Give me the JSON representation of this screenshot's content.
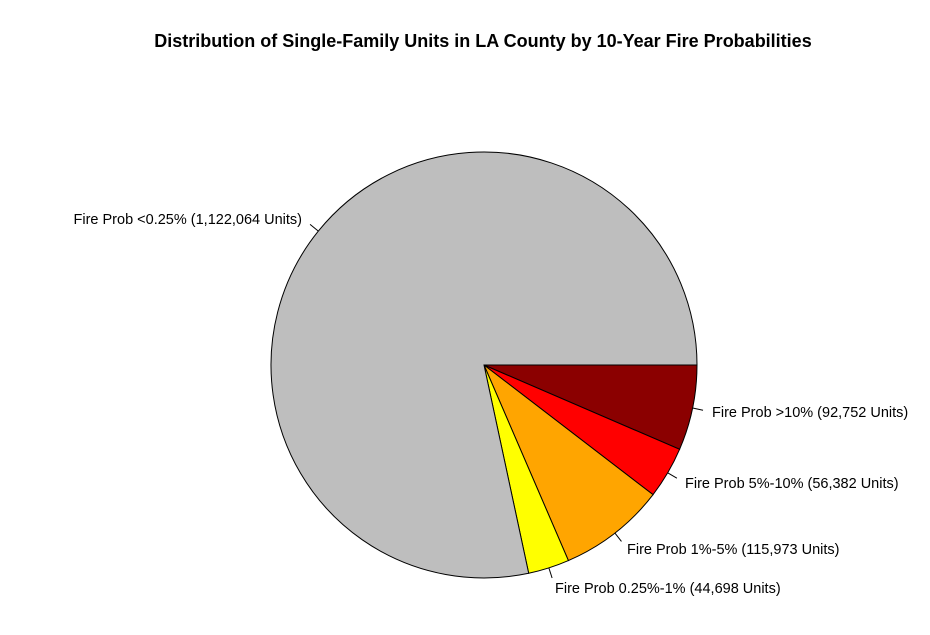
{
  "chart_data": {
    "type": "pie",
    "title": "Distribution of Single-Family Units in LA County by 10-Year Fire Probabilities",
    "start_angle_deg": 0,
    "direction": "clockwise",
    "slices": [
      {
        "label": "Fire Prob >10% (92,752 Units)",
        "value": 92752,
        "color": "#8B0000"
      },
      {
        "label": "Fire Prob 5%-10% (56,382 Units)",
        "value": 56382,
        "color": "#FF0000"
      },
      {
        "label": "Fire Prob 1%-5% (115,973 Units)",
        "value": 115973,
        "color": "#FFA500"
      },
      {
        "label": "Fire Prob 0.25%-1% (44,698 Units)",
        "value": 44698,
        "color": "#FFFF00"
      },
      {
        "label": "Fire Prob <0.25% (1,122,064 Units)",
        "value": 1122064,
        "color": "#BEBEBE"
      }
    ]
  }
}
